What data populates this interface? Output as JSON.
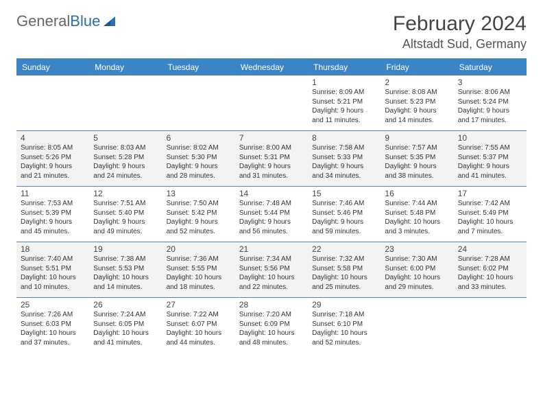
{
  "logo": {
    "general": "General",
    "blue": "Blue"
  },
  "title": "February 2024",
  "location": "Altstadt Sud, Germany",
  "colors": {
    "header_bg": "#3b85c6",
    "alt_row_bg": "#f3f3f3",
    "border": "#5a7fa8"
  },
  "day_names": [
    "Sunday",
    "Monday",
    "Tuesday",
    "Wednesday",
    "Thursday",
    "Friday",
    "Saturday"
  ],
  "weeks": [
    {
      "alt": false,
      "days": [
        null,
        null,
        null,
        null,
        {
          "num": "1",
          "sunrise": "Sunrise: 8:09 AM",
          "sunset": "Sunset: 5:21 PM",
          "daylight": "Daylight: 9 hours and 11 minutes."
        },
        {
          "num": "2",
          "sunrise": "Sunrise: 8:08 AM",
          "sunset": "Sunset: 5:23 PM",
          "daylight": "Daylight: 9 hours and 14 minutes."
        },
        {
          "num": "3",
          "sunrise": "Sunrise: 8:06 AM",
          "sunset": "Sunset: 5:24 PM",
          "daylight": "Daylight: 9 hours and 17 minutes."
        }
      ]
    },
    {
      "alt": true,
      "days": [
        {
          "num": "4",
          "sunrise": "Sunrise: 8:05 AM",
          "sunset": "Sunset: 5:26 PM",
          "daylight": "Daylight: 9 hours and 21 minutes."
        },
        {
          "num": "5",
          "sunrise": "Sunrise: 8:03 AM",
          "sunset": "Sunset: 5:28 PM",
          "daylight": "Daylight: 9 hours and 24 minutes."
        },
        {
          "num": "6",
          "sunrise": "Sunrise: 8:02 AM",
          "sunset": "Sunset: 5:30 PM",
          "daylight": "Daylight: 9 hours and 28 minutes."
        },
        {
          "num": "7",
          "sunrise": "Sunrise: 8:00 AM",
          "sunset": "Sunset: 5:31 PM",
          "daylight": "Daylight: 9 hours and 31 minutes."
        },
        {
          "num": "8",
          "sunrise": "Sunrise: 7:58 AM",
          "sunset": "Sunset: 5:33 PM",
          "daylight": "Daylight: 9 hours and 34 minutes."
        },
        {
          "num": "9",
          "sunrise": "Sunrise: 7:57 AM",
          "sunset": "Sunset: 5:35 PM",
          "daylight": "Daylight: 9 hours and 38 minutes."
        },
        {
          "num": "10",
          "sunrise": "Sunrise: 7:55 AM",
          "sunset": "Sunset: 5:37 PM",
          "daylight": "Daylight: 9 hours and 41 minutes."
        }
      ]
    },
    {
      "alt": false,
      "days": [
        {
          "num": "11",
          "sunrise": "Sunrise: 7:53 AM",
          "sunset": "Sunset: 5:39 PM",
          "daylight": "Daylight: 9 hours and 45 minutes."
        },
        {
          "num": "12",
          "sunrise": "Sunrise: 7:51 AM",
          "sunset": "Sunset: 5:40 PM",
          "daylight": "Daylight: 9 hours and 49 minutes."
        },
        {
          "num": "13",
          "sunrise": "Sunrise: 7:50 AM",
          "sunset": "Sunset: 5:42 PM",
          "daylight": "Daylight: 9 hours and 52 minutes."
        },
        {
          "num": "14",
          "sunrise": "Sunrise: 7:48 AM",
          "sunset": "Sunset: 5:44 PM",
          "daylight": "Daylight: 9 hours and 56 minutes."
        },
        {
          "num": "15",
          "sunrise": "Sunrise: 7:46 AM",
          "sunset": "Sunset: 5:46 PM",
          "daylight": "Daylight: 9 hours and 59 minutes."
        },
        {
          "num": "16",
          "sunrise": "Sunrise: 7:44 AM",
          "sunset": "Sunset: 5:48 PM",
          "daylight": "Daylight: 10 hours and 3 minutes."
        },
        {
          "num": "17",
          "sunrise": "Sunrise: 7:42 AM",
          "sunset": "Sunset: 5:49 PM",
          "daylight": "Daylight: 10 hours and 7 minutes."
        }
      ]
    },
    {
      "alt": true,
      "days": [
        {
          "num": "18",
          "sunrise": "Sunrise: 7:40 AM",
          "sunset": "Sunset: 5:51 PM",
          "daylight": "Daylight: 10 hours and 10 minutes."
        },
        {
          "num": "19",
          "sunrise": "Sunrise: 7:38 AM",
          "sunset": "Sunset: 5:53 PM",
          "daylight": "Daylight: 10 hours and 14 minutes."
        },
        {
          "num": "20",
          "sunrise": "Sunrise: 7:36 AM",
          "sunset": "Sunset: 5:55 PM",
          "daylight": "Daylight: 10 hours and 18 minutes."
        },
        {
          "num": "21",
          "sunrise": "Sunrise: 7:34 AM",
          "sunset": "Sunset: 5:56 PM",
          "daylight": "Daylight: 10 hours and 22 minutes."
        },
        {
          "num": "22",
          "sunrise": "Sunrise: 7:32 AM",
          "sunset": "Sunset: 5:58 PM",
          "daylight": "Daylight: 10 hours and 25 minutes."
        },
        {
          "num": "23",
          "sunrise": "Sunrise: 7:30 AM",
          "sunset": "Sunset: 6:00 PM",
          "daylight": "Daylight: 10 hours and 29 minutes."
        },
        {
          "num": "24",
          "sunrise": "Sunrise: 7:28 AM",
          "sunset": "Sunset: 6:02 PM",
          "daylight": "Daylight: 10 hours and 33 minutes."
        }
      ]
    },
    {
      "alt": false,
      "days": [
        {
          "num": "25",
          "sunrise": "Sunrise: 7:26 AM",
          "sunset": "Sunset: 6:03 PM",
          "daylight": "Daylight: 10 hours and 37 minutes."
        },
        {
          "num": "26",
          "sunrise": "Sunrise: 7:24 AM",
          "sunset": "Sunset: 6:05 PM",
          "daylight": "Daylight: 10 hours and 41 minutes."
        },
        {
          "num": "27",
          "sunrise": "Sunrise: 7:22 AM",
          "sunset": "Sunset: 6:07 PM",
          "daylight": "Daylight: 10 hours and 44 minutes."
        },
        {
          "num": "28",
          "sunrise": "Sunrise: 7:20 AM",
          "sunset": "Sunset: 6:09 PM",
          "daylight": "Daylight: 10 hours and 48 minutes."
        },
        {
          "num": "29",
          "sunrise": "Sunrise: 7:18 AM",
          "sunset": "Sunset: 6:10 PM",
          "daylight": "Daylight: 10 hours and 52 minutes."
        },
        null,
        null
      ]
    }
  ]
}
